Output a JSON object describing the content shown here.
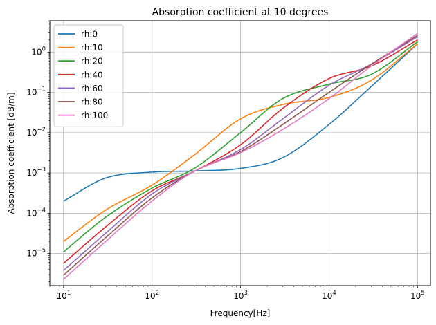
{
  "chart_data": {
    "type": "line",
    "title": "Absorption coefficient at 10 degrees",
    "xlabel": "Frequency[Hz]",
    "ylabel": "Absorption coefficient [dB/m]",
    "xscale": "log",
    "yscale": "log",
    "xlim": [
      7,
      140000
    ],
    "ylim": [
      1.6e-06,
      6
    ],
    "x_ticks": [
      {
        "base": "10",
        "exp": "1",
        "value": 10
      },
      {
        "base": "10",
        "exp": "2",
        "value": 100
      },
      {
        "base": "10",
        "exp": "3",
        "value": 1000
      },
      {
        "base": "10",
        "exp": "4",
        "value": 10000
      },
      {
        "base": "10",
        "exp": "5",
        "value": 100000
      }
    ],
    "y_ticks": [
      {
        "base": "10",
        "exp": "−5",
        "value": 1e-05
      },
      {
        "base": "10",
        "exp": "−4",
        "value": 0.0001
      },
      {
        "base": "10",
        "exp": "−3",
        "value": 0.001
      },
      {
        "base": "10",
        "exp": "−2",
        "value": 0.01
      },
      {
        "base": "10",
        "exp": "−1",
        "value": 0.1
      },
      {
        "base": "10",
        "exp": "0",
        "value": 1
      }
    ],
    "grid": true,
    "legend_position": "top-left",
    "x": [
      10,
      30,
      100,
      300,
      1000,
      3000,
      10000,
      30000,
      100000
    ],
    "series": [
      {
        "name": "rh:0",
        "color": "#1f77b4",
        "values": [
          0.0002,
          0.00075,
          0.00105,
          0.00112,
          0.0013,
          0.0024,
          0.016,
          0.14,
          1.6
        ]
      },
      {
        "name": "rh:10",
        "color": "#ff7f0e",
        "values": [
          2e-05,
          0.00012,
          0.0005,
          0.0028,
          0.022,
          0.05,
          0.075,
          0.2,
          1.6
        ]
      },
      {
        "name": "rh:20",
        "color": "#2ca02c",
        "values": [
          1.1e-05,
          8e-05,
          0.00042,
          0.0013,
          0.01,
          0.07,
          0.16,
          0.28,
          1.8
        ]
      },
      {
        "name": "rh:40",
        "color": "#d62728",
        "values": [
          5.7e-06,
          4.6e-05,
          0.00036,
          0.0011,
          0.005,
          0.04,
          0.22,
          0.45,
          2.0
        ]
      },
      {
        "name": "rh:60",
        "color": "#9467bd",
        "values": [
          3.8e-06,
          3.2e-05,
          0.0003,
          0.0011,
          0.0038,
          0.022,
          0.15,
          0.5,
          2.4
        ]
      },
      {
        "name": "rh:80",
        "color": "#8c564b",
        "values": [
          2.9e-06,
          2.5e-05,
          0.00024,
          0.0011,
          0.0034,
          0.016,
          0.1,
          0.5,
          2.6
        ]
      },
      {
        "name": "rh:100",
        "color": "#e377c2",
        "values": [
          2.3e-06,
          2e-05,
          0.0002,
          0.0011,
          0.0032,
          0.012,
          0.07,
          0.45,
          2.9
        ]
      }
    ]
  }
}
